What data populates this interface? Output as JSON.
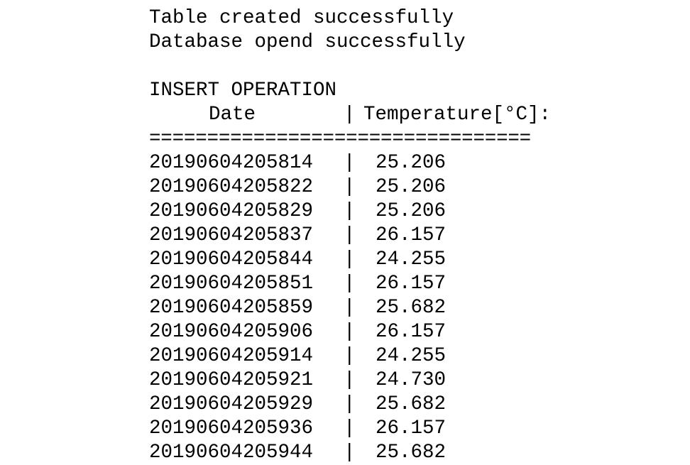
{
  "console": {
    "messages": [
      "Table created successfully",
      "Database opend successfully"
    ],
    "section_title": "INSERT OPERATION",
    "table": {
      "headers": {
        "date": "Date",
        "separator": "|",
        "temperature": "Temperature[°C]:"
      },
      "rule": "=================================",
      "rows": [
        {
          "date": "20190604205814",
          "temperature": "25.206"
        },
        {
          "date": "20190604205822",
          "temperature": "25.206"
        },
        {
          "date": "20190604205829",
          "temperature": "25.206"
        },
        {
          "date": "20190604205837",
          "temperature": "26.157"
        },
        {
          "date": "20190604205844",
          "temperature": "24.255"
        },
        {
          "date": "20190604205851",
          "temperature": "26.157"
        },
        {
          "date": "20190604205859",
          "temperature": "25.682"
        },
        {
          "date": "20190604205906",
          "temperature": "26.157"
        },
        {
          "date": "20190604205914",
          "temperature": "24.255"
        },
        {
          "date": "20190604205921",
          "temperature": "24.730"
        },
        {
          "date": "20190604205929",
          "temperature": "25.682"
        },
        {
          "date": "20190604205936",
          "temperature": "26.157"
        },
        {
          "date": "20190604205944",
          "temperature": "25.682"
        }
      ]
    }
  }
}
